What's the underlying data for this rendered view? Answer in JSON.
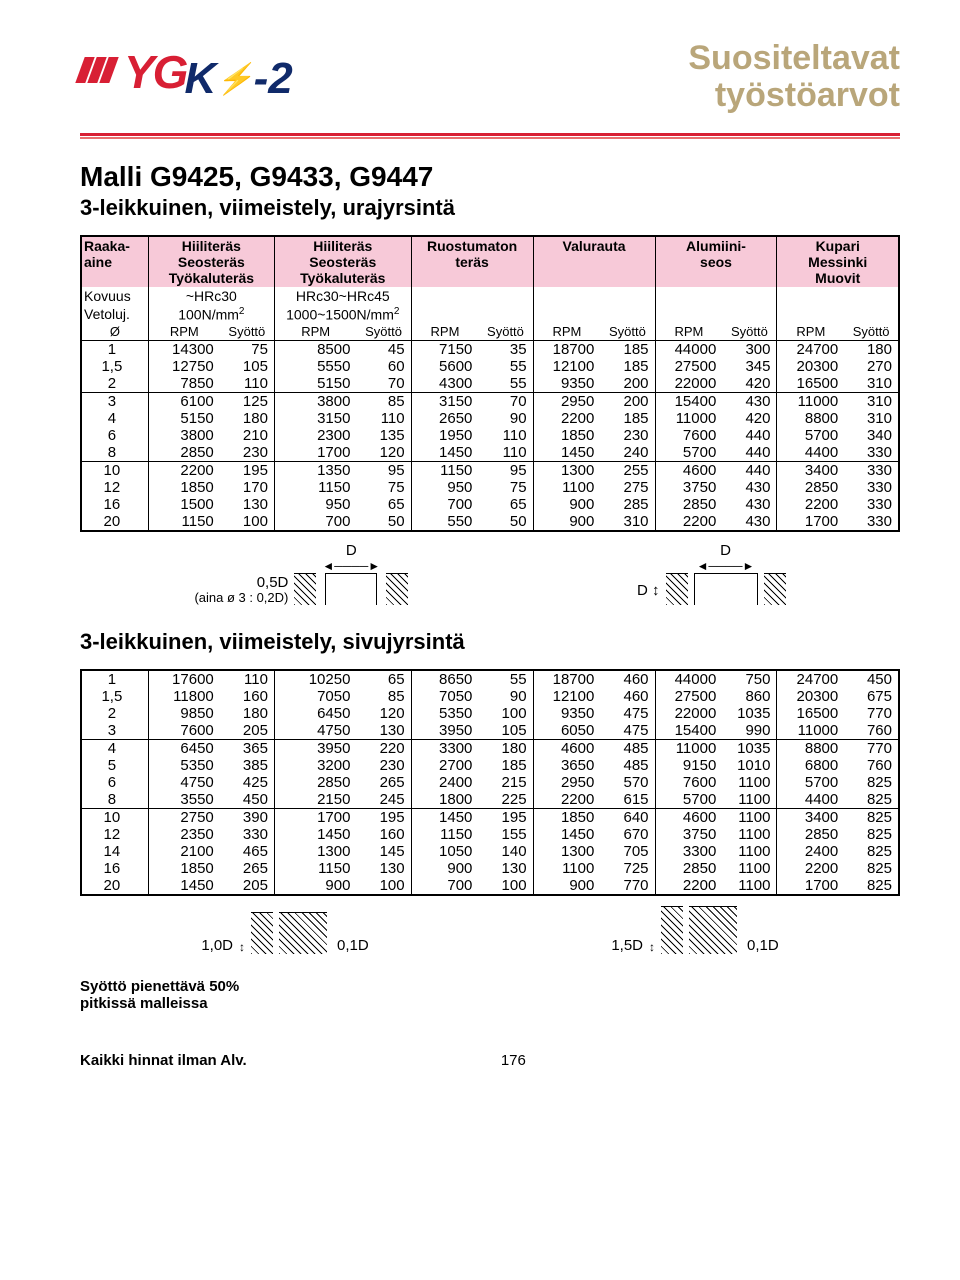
{
  "header": {
    "title_line1": "Suositeltavat",
    "title_line2": "työstöarvot",
    "logo_text": "YG",
    "logo_sub": "K",
    "logo_sub2": "-2"
  },
  "model": {
    "title": "Malli G9425, G9433, G9447",
    "subtitle": "3-leikkuinen, viimeistely, urajyrsintä"
  },
  "colors": {
    "accent_red": "#d81f34",
    "header_pink": "#f7c9d8",
    "title_tan": "#b9a67a",
    "logo_blue": "#102a6a"
  },
  "materials": {
    "col0": [
      "Raaka-",
      "aine"
    ],
    "col1": [
      "Hiiliteräs",
      "Seosteräs",
      "Työkaluteräs"
    ],
    "col2": [
      "Hiiliteräs",
      "Seosteräs",
      "Työkaluteräs"
    ],
    "col3": [
      "Ruostumaton",
      "teräs"
    ],
    "col4": [
      "Valurauta"
    ],
    "col5": [
      "Alumiini-",
      "seos"
    ],
    "col6": [
      "Kupari",
      "Messinki",
      "Muovit"
    ]
  },
  "params": {
    "row1_left": "Kovuus",
    "row1_c1": "~HRc30",
    "row1_c2": "HRc30~HRc45",
    "row2_left": "Vetoluj.",
    "row2_c1": "100N/mm²",
    "row2_c2": "1000~1500N/mm²",
    "row3_left": "Ø",
    "unit_rpm": "RPM",
    "unit_feed": "Syöttö"
  },
  "table1": {
    "diameters": [
      "1",
      "1,5",
      "2",
      "3",
      "4",
      "6",
      "8",
      "10",
      "12",
      "16",
      "20"
    ],
    "groups": [
      [
        0,
        1,
        2
      ],
      [
        3,
        4,
        5,
        6
      ],
      [
        7,
        8,
        9,
        10
      ]
    ],
    "cols": [
      [
        [
          14300,
          75
        ],
        [
          12750,
          105
        ],
        [
          7850,
          110
        ],
        [
          6100,
          125
        ],
        [
          5150,
          180
        ],
        [
          3800,
          210
        ],
        [
          2850,
          230
        ],
        [
          2200,
          195
        ],
        [
          1850,
          170
        ],
        [
          1500,
          130
        ],
        [
          1150,
          100
        ]
      ],
      [
        [
          8500,
          45
        ],
        [
          5550,
          60
        ],
        [
          5150,
          70
        ],
        [
          3800,
          85
        ],
        [
          3150,
          110
        ],
        [
          2300,
          135
        ],
        [
          1700,
          120
        ],
        [
          1350,
          95
        ],
        [
          1150,
          75
        ],
        [
          950,
          65
        ],
        [
          700,
          50
        ]
      ],
      [
        [
          7150,
          35
        ],
        [
          5600,
          55
        ],
        [
          4300,
          55
        ],
        [
          3150,
          70
        ],
        [
          2650,
          90
        ],
        [
          1950,
          110
        ],
        [
          1450,
          110
        ],
        [
          1150,
          95
        ],
        [
          950,
          75
        ],
        [
          700,
          65
        ],
        [
          550,
          50
        ]
      ],
      [
        [
          18700,
          185
        ],
        [
          12100,
          185
        ],
        [
          9350,
          200
        ],
        [
          2950,
          200
        ],
        [
          2200,
          185
        ],
        [
          1850,
          230
        ],
        [
          1450,
          240
        ],
        [
          1300,
          255
        ],
        [
          1100,
          275
        ],
        [
          900,
          285
        ],
        [
          900,
          310
        ]
      ],
      [
        [
          44000,
          300
        ],
        [
          27500,
          345
        ],
        [
          22000,
          420
        ],
        [
          15400,
          430
        ],
        [
          11000,
          420
        ],
        [
          7600,
          440
        ],
        [
          5700,
          440
        ],
        [
          4600,
          440
        ],
        [
          3750,
          430
        ],
        [
          2850,
          430
        ],
        [
          2200,
          430
        ]
      ],
      [
        [
          24700,
          180
        ],
        [
          20300,
          270
        ],
        [
          16500,
          310
        ],
        [
          11000,
          310
        ],
        [
          8800,
          310
        ],
        [
          5700,
          340
        ],
        [
          4400,
          330
        ],
        [
          3400,
          330
        ],
        [
          2850,
          330
        ],
        [
          2200,
          330
        ],
        [
          1700,
          330
        ]
      ]
    ]
  },
  "diagram1": {
    "depth": "0,5D",
    "note": "(aina ø 3 : 0,2D)",
    "label_d": "D"
  },
  "section2_title": "3-leikkuinen, viimeistely, sivujyrsintä",
  "table2": {
    "diameters": [
      "1",
      "1,5",
      "2",
      "3",
      "4",
      "5",
      "6",
      "8",
      "10",
      "12",
      "14",
      "16",
      "20"
    ],
    "groups": [
      [
        0,
        1,
        2,
        3
      ],
      [
        4,
        5,
        6,
        7
      ],
      [
        8,
        9,
        10,
        11,
        12
      ]
    ],
    "cols": [
      [
        [
          17600,
          110
        ],
        [
          11800,
          160
        ],
        [
          9850,
          180
        ],
        [
          7600,
          205
        ],
        [
          6450,
          365
        ],
        [
          5350,
          385
        ],
        [
          4750,
          425
        ],
        [
          3550,
          450
        ],
        [
          2750,
          390
        ],
        [
          2350,
          330
        ],
        [
          2100,
          465
        ],
        [
          1850,
          265
        ],
        [
          1450,
          205
        ]
      ],
      [
        [
          10250,
          65
        ],
        [
          7050,
          85
        ],
        [
          6450,
          120
        ],
        [
          4750,
          130
        ],
        [
          3950,
          220
        ],
        [
          3200,
          230
        ],
        [
          2850,
          265
        ],
        [
          2150,
          245
        ],
        [
          1700,
          195
        ],
        [
          1450,
          160
        ],
        [
          1300,
          145
        ],
        [
          1150,
          130
        ],
        [
          900,
          100
        ]
      ],
      [
        [
          8650,
          55
        ],
        [
          7050,
          90
        ],
        [
          5350,
          100
        ],
        [
          3950,
          105
        ],
        [
          3300,
          180
        ],
        [
          2700,
          185
        ],
        [
          2400,
          215
        ],
        [
          1800,
          225
        ],
        [
          1450,
          195
        ],
        [
          1150,
          155
        ],
        [
          1050,
          140
        ],
        [
          900,
          130
        ],
        [
          700,
          100
        ]
      ],
      [
        [
          18700,
          460
        ],
        [
          12100,
          460
        ],
        [
          9350,
          475
        ],
        [
          6050,
          475
        ],
        [
          4600,
          485
        ],
        [
          3650,
          485
        ],
        [
          2950,
          570
        ],
        [
          2200,
          615
        ],
        [
          1850,
          640
        ],
        [
          1450,
          670
        ],
        [
          1300,
          705
        ],
        [
          1100,
          725
        ],
        [
          900,
          770
        ]
      ],
      [
        [
          44000,
          750
        ],
        [
          27500,
          860
        ],
        [
          22000,
          1035
        ],
        [
          15400,
          990
        ],
        [
          11000,
          1035
        ],
        [
          9150,
          1010
        ],
        [
          7600,
          1100
        ],
        [
          5700,
          1100
        ],
        [
          4600,
          1100
        ],
        [
          3750,
          1100
        ],
        [
          3300,
          1100
        ],
        [
          2850,
          1100
        ],
        [
          2200,
          1100
        ]
      ],
      [
        [
          24700,
          450
        ],
        [
          20300,
          675
        ],
        [
          16500,
          770
        ],
        [
          11000,
          760
        ],
        [
          8800,
          770
        ],
        [
          6800,
          760
        ],
        [
          5700,
          825
        ],
        [
          4400,
          825
        ],
        [
          3400,
          825
        ],
        [
          2850,
          825
        ],
        [
          2400,
          825
        ],
        [
          2200,
          825
        ],
        [
          1700,
          825
        ]
      ]
    ]
  },
  "diagram2": {
    "depth": "1,0D",
    "side": "0,1D",
    "depth2": "1,5D",
    "side2": "0,1D"
  },
  "note": "Syöttö pienettävä 50%\npitkissä malleissa",
  "footer": {
    "left": "Kaikki hinnat ilman Alv.",
    "page": "176"
  }
}
